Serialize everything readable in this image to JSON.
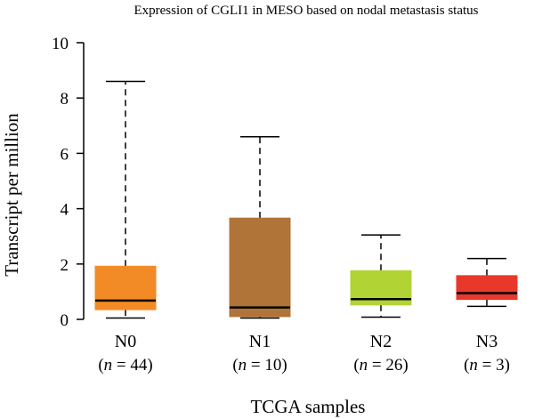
{
  "chart_data": {
    "type": "box",
    "title": "Expression of CGLI1 in MESO based on nodal metastasis status",
    "xlabel": "TCGA samples",
    "ylabel": "Transcript per million",
    "ylim": [
      0,
      10
    ],
    "yticks": [
      0,
      2,
      4,
      6,
      8,
      10
    ],
    "grid": false,
    "groups": [
      {
        "category": "N0",
        "n_prefix": "(",
        "n_var": "n",
        "n_suffix": " = 44)",
        "color": "#f28a26",
        "whisker_low": 0.05,
        "q1": 0.35,
        "median": 0.68,
        "q3": 1.92,
        "whisker_high": 8.6
      },
      {
        "category": "N1",
        "n_prefix": "(",
        "n_var": "n",
        "n_suffix": " = 10)",
        "color": "#b07438",
        "whisker_low": 0.05,
        "q1": 0.1,
        "median": 0.43,
        "q3": 3.66,
        "whisker_high": 6.6
      },
      {
        "category": "N2",
        "n_prefix": "(",
        "n_var": "n",
        "n_suffix": " = 26)",
        "color": "#b1d334",
        "whisker_low": 0.08,
        "q1": 0.52,
        "median": 0.73,
        "q3": 1.76,
        "whisker_high": 3.05
      },
      {
        "category": "N3",
        "n_prefix": "(",
        "n_var": "n",
        "n_suffix": " = 3)",
        "color": "#e9382a",
        "whisker_low": 0.47,
        "q1": 0.72,
        "median": 0.95,
        "q3": 1.58,
        "whisker_high": 2.2
      }
    ]
  }
}
